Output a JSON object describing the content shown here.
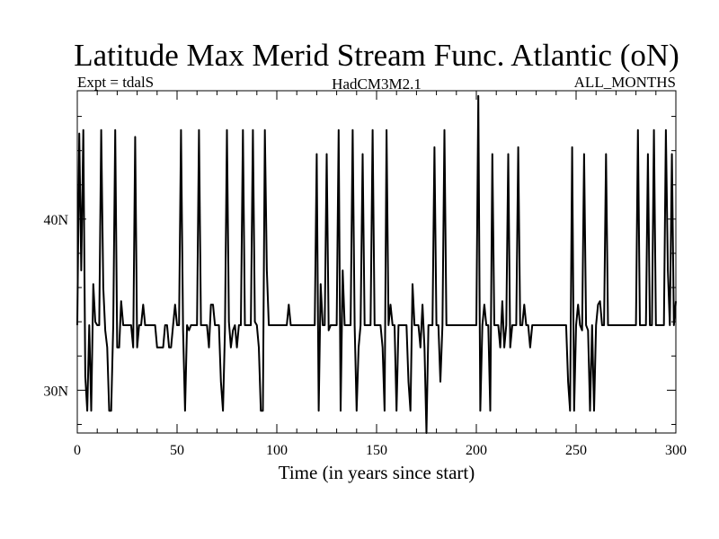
{
  "chart_data": {
    "type": "line",
    "title": "Latitude Max Merid Stream Func. Atlantic (oN)",
    "subtitle_left": "Expt = tdalS",
    "subtitle_center": "HadCM3M2.1",
    "subtitle_right": "ALL_MONTHS",
    "xlabel": "Time (in years since start)",
    "ylabel": "",
    "xlim": [
      0,
      300
    ],
    "ylim": [
      27.5,
      47.5
    ],
    "xticks": [
      0,
      50,
      100,
      150,
      200,
      250,
      300
    ],
    "xtick_labels": [
      "0",
      "50",
      "100",
      "150",
      "200",
      "250",
      "300"
    ],
    "yticks": [
      30,
      40
    ],
    "ytick_labels": [
      "30N",
      "40N"
    ],
    "grid": false,
    "series": [
      {
        "color": "#000000",
        "points": [
          [
            0,
            33.8
          ],
          [
            1,
            45.0
          ],
          [
            2,
            37.0
          ],
          [
            3,
            45.2
          ],
          [
            4,
            30.8
          ],
          [
            5,
            28.8
          ],
          [
            6,
            33.8
          ],
          [
            7,
            28.8
          ],
          [
            8,
            36.2
          ],
          [
            9,
            34.0
          ],
          [
            10,
            33.8
          ],
          [
            11,
            33.8
          ],
          [
            12,
            45.2
          ],
          [
            13,
            36.0
          ],
          [
            14,
            33.5
          ],
          [
            15,
            32.5
          ],
          [
            16,
            28.8
          ],
          [
            17,
            28.8
          ],
          [
            18,
            33.8
          ],
          [
            19,
            45.2
          ],
          [
            20,
            32.5
          ],
          [
            21,
            32.5
          ],
          [
            22,
            35.2
          ],
          [
            23,
            33.8
          ],
          [
            24,
            33.8
          ],
          [
            25,
            33.8
          ],
          [
            26,
            33.8
          ],
          [
            27,
            33.8
          ],
          [
            28,
            32.5
          ],
          [
            29,
            44.8
          ],
          [
            30,
            32.5
          ],
          [
            31,
            33.8
          ],
          [
            32,
            33.8
          ],
          [
            33,
            35.0
          ],
          [
            34,
            33.8
          ],
          [
            35,
            33.8
          ],
          [
            38,
            33.8
          ],
          [
            39,
            33.8
          ],
          [
            40,
            32.5
          ],
          [
            42,
            32.5
          ],
          [
            43,
            32.5
          ],
          [
            44,
            33.8
          ],
          [
            45,
            33.8
          ],
          [
            46,
            32.5
          ],
          [
            47,
            32.5
          ],
          [
            48,
            33.8
          ],
          [
            49,
            35.0
          ],
          [
            50,
            33.8
          ],
          [
            51,
            33.8
          ],
          [
            52,
            45.2
          ],
          [
            53,
            33.5
          ],
          [
            54,
            28.8
          ],
          [
            55,
            33.8
          ],
          [
            56,
            33.5
          ],
          [
            57,
            33.8
          ],
          [
            58,
            33.8
          ],
          [
            59,
            33.8
          ],
          [
            60,
            33.8
          ],
          [
            61,
            45.2
          ],
          [
            62,
            33.8
          ],
          [
            63,
            33.8
          ],
          [
            64,
            33.8
          ],
          [
            65,
            33.8
          ],
          [
            66,
            32.5
          ],
          [
            67,
            35.0
          ],
          [
            68,
            35.0
          ],
          [
            69,
            33.8
          ],
          [
            70,
            33.8
          ],
          [
            71,
            33.8
          ],
          [
            72,
            30.5
          ],
          [
            73,
            28.8
          ],
          [
            74,
            33.5
          ],
          [
            75,
            45.2
          ],
          [
            76,
            34.0
          ],
          [
            77,
            32.5
          ],
          [
            78,
            33.5
          ],
          [
            79,
            33.8
          ],
          [
            80,
            32.5
          ],
          [
            81,
            33.8
          ],
          [
            82,
            33.8
          ],
          [
            83,
            45.2
          ],
          [
            84,
            33.8
          ],
          [
            85,
            33.8
          ],
          [
            86,
            33.8
          ],
          [
            87,
            33.8
          ],
          [
            88,
            45.2
          ],
          [
            89,
            34.0
          ],
          [
            90,
            33.8
          ],
          [
            91,
            32.5
          ],
          [
            92,
            28.8
          ],
          [
            93,
            28.8
          ],
          [
            94,
            45.2
          ],
          [
            95,
            37.0
          ],
          [
            96,
            33.8
          ],
          [
            97,
            33.8
          ],
          [
            100,
            33.8
          ],
          [
            104,
            33.8
          ],
          [
            105,
            33.8
          ],
          [
            106,
            35.0
          ],
          [
            107,
            33.8
          ],
          [
            108,
            33.8
          ],
          [
            112,
            33.8
          ],
          [
            116,
            33.8
          ],
          [
            119,
            33.8
          ],
          [
            120,
            43.8
          ],
          [
            121,
            28.8
          ],
          [
            122,
            36.2
          ],
          [
            123,
            33.8
          ],
          [
            124,
            33.8
          ],
          [
            125,
            43.8
          ],
          [
            126,
            33.5
          ],
          [
            127,
            33.8
          ],
          [
            128,
            33.8
          ],
          [
            129,
            33.8
          ],
          [
            130,
            33.8
          ],
          [
            131,
            45.2
          ],
          [
            132,
            28.8
          ],
          [
            133,
            37.0
          ],
          [
            134,
            33.8
          ],
          [
            135,
            33.8
          ],
          [
            136,
            33.8
          ],
          [
            137,
            33.8
          ],
          [
            138,
            45.2
          ],
          [
            139,
            33.8
          ],
          [
            140,
            28.8
          ],
          [
            141,
            32.5
          ],
          [
            142,
            33.8
          ],
          [
            143,
            43.8
          ],
          [
            144,
            33.8
          ],
          [
            145,
            33.8
          ],
          [
            146,
            33.8
          ],
          [
            147,
            33.8
          ],
          [
            148,
            45.2
          ],
          [
            149,
            33.8
          ],
          [
            150,
            33.8
          ],
          [
            151,
            33.8
          ],
          [
            152,
            33.8
          ],
          [
            153,
            32.5
          ],
          [
            154,
            28.8
          ],
          [
            155,
            45.2
          ],
          [
            156,
            33.8
          ],
          [
            157,
            35.0
          ],
          [
            158,
            33.8
          ],
          [
            159,
            33.8
          ],
          [
            160,
            28.8
          ],
          [
            161,
            33.8
          ],
          [
            162,
            33.8
          ],
          [
            163,
            33.8
          ],
          [
            164,
            33.8
          ],
          [
            165,
            33.8
          ],
          [
            166,
            30.5
          ],
          [
            167,
            28.8
          ],
          [
            168,
            36.2
          ],
          [
            169,
            33.8
          ],
          [
            170,
            33.8
          ],
          [
            171,
            33.8
          ],
          [
            172,
            32.5
          ],
          [
            173,
            35.0
          ],
          [
            174,
            32.5
          ],
          [
            175,
            27.5
          ],
          [
            176,
            33.8
          ],
          [
            177,
            33.8
          ],
          [
            178,
            33.8
          ],
          [
            179,
            44.2
          ],
          [
            180,
            33.8
          ],
          [
            181,
            33.8
          ],
          [
            182,
            30.5
          ],
          [
            183,
            33.8
          ],
          [
            184,
            45.2
          ],
          [
            185,
            33.8
          ],
          [
            186,
            33.8
          ],
          [
            190,
            33.8
          ],
          [
            195,
            33.8
          ],
          [
            199,
            33.8
          ],
          [
            200,
            33.8
          ],
          [
            201,
            47.2
          ],
          [
            202,
            28.8
          ],
          [
            203,
            33.8
          ],
          [
            204,
            35.0
          ],
          [
            205,
            33.8
          ],
          [
            206,
            33.8
          ],
          [
            207,
            28.8
          ],
          [
            208,
            43.8
          ],
          [
            209,
            33.8
          ],
          [
            210,
            33.8
          ],
          [
            211,
            33.8
          ],
          [
            212,
            32.5
          ],
          [
            213,
            35.2
          ],
          [
            214,
            32.5
          ],
          [
            215,
            33.8
          ],
          [
            216,
            43.8
          ],
          [
            217,
            32.5
          ],
          [
            218,
            33.8
          ],
          [
            219,
            33.8
          ],
          [
            220,
            33.8
          ],
          [
            221,
            44.2
          ],
          [
            222,
            33.8
          ],
          [
            223,
            33.8
          ],
          [
            224,
            35.0
          ],
          [
            225,
            33.8
          ],
          [
            226,
            33.8
          ],
          [
            227,
            32.5
          ],
          [
            228,
            33.8
          ],
          [
            230,
            33.8
          ],
          [
            235,
            33.8
          ],
          [
            240,
            33.8
          ],
          [
            243,
            33.8
          ],
          [
            244,
            33.8
          ],
          [
            245,
            33.8
          ],
          [
            246,
            30.5
          ],
          [
            247,
            28.8
          ],
          [
            248,
            44.2
          ],
          [
            249,
            28.8
          ],
          [
            250,
            33.8
          ],
          [
            251,
            35.0
          ],
          [
            252,
            33.8
          ],
          [
            253,
            33.5
          ],
          [
            254,
            43.8
          ],
          [
            255,
            33.8
          ],
          [
            256,
            33.5
          ],
          [
            257,
            28.8
          ],
          [
            258,
            33.8
          ],
          [
            259,
            28.8
          ],
          [
            260,
            33.8
          ],
          [
            261,
            35.0
          ],
          [
            262,
            35.2
          ],
          [
            263,
            33.8
          ],
          [
            264,
            33.8
          ],
          [
            265,
            43.8
          ],
          [
            266,
            33.8
          ],
          [
            267,
            33.8
          ],
          [
            270,
            33.8
          ],
          [
            275,
            33.8
          ],
          [
            279,
            33.8
          ],
          [
            280,
            33.8
          ],
          [
            281,
            45.2
          ],
          [
            282,
            33.8
          ],
          [
            283,
            33.8
          ],
          [
            284,
            33.8
          ],
          [
            285,
            33.8
          ],
          [
            286,
            43.8
          ],
          [
            287,
            33.8
          ],
          [
            288,
            33.8
          ],
          [
            289,
            45.2
          ],
          [
            290,
            33.8
          ],
          [
            291,
            33.8
          ],
          [
            292,
            33.8
          ],
          [
            293,
            33.8
          ],
          [
            294,
            33.8
          ],
          [
            295,
            45.2
          ],
          [
            296,
            37.0
          ],
          [
            297,
            33.8
          ],
          [
            298,
            43.8
          ],
          [
            299,
            33.8
          ],
          [
            300,
            35.2
          ]
        ]
      }
    ]
  }
}
